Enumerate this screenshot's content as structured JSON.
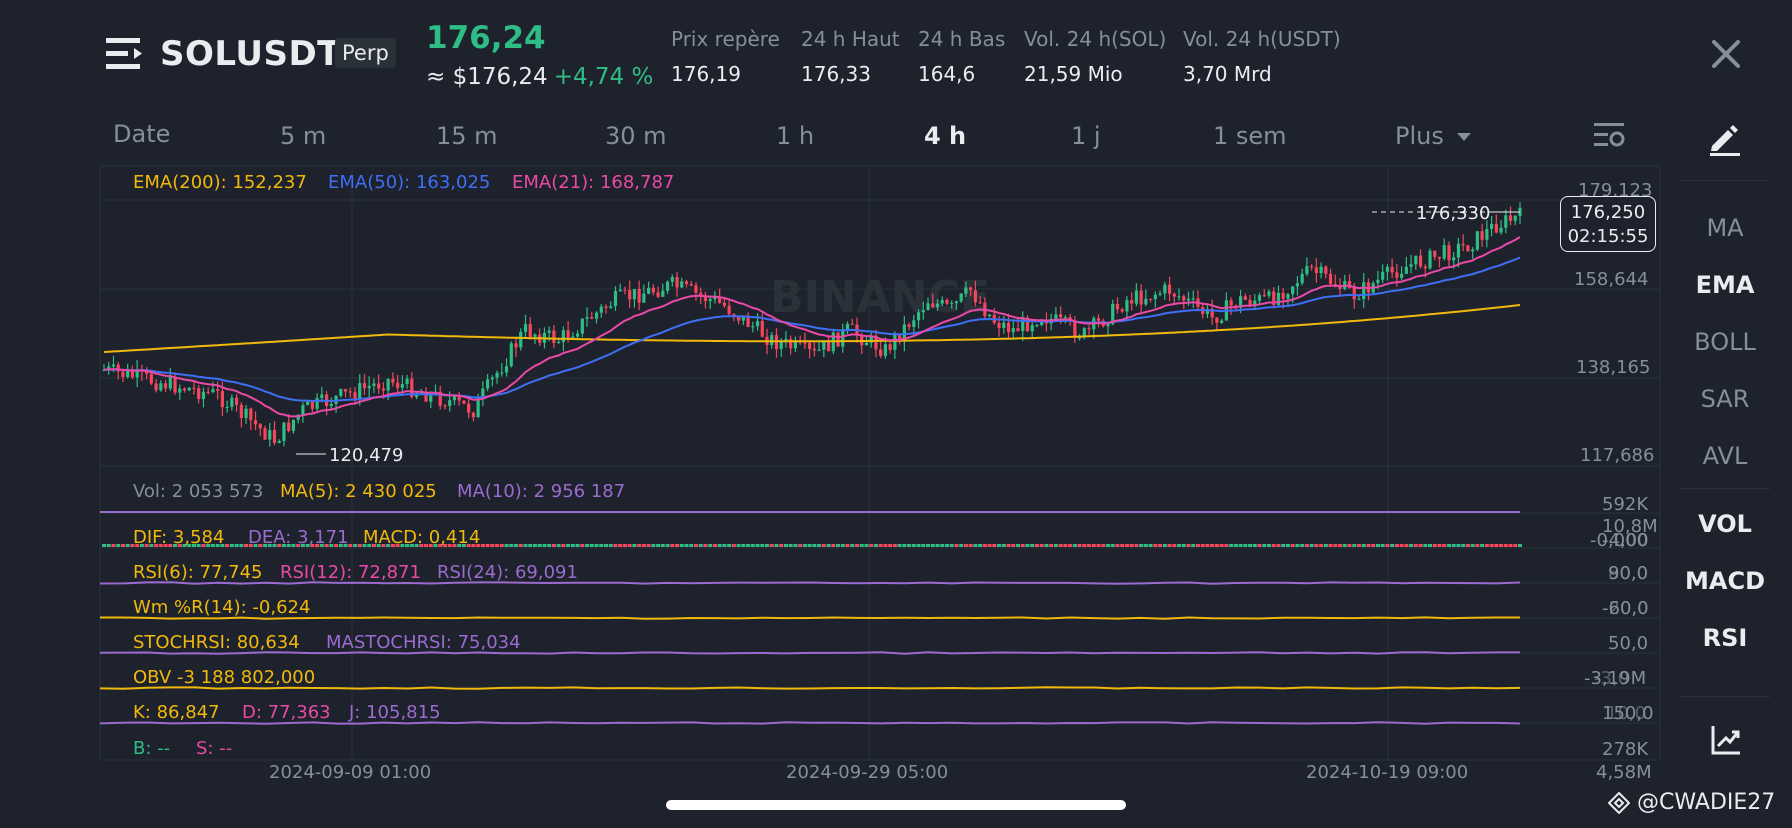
{
  "header": {
    "symbol": "SOLUSDT",
    "contract_type": "Perp",
    "last_price": "176,24",
    "usd_price": "≈ $176,24",
    "change_pct": "+4,74 %",
    "stats": [
      {
        "label": "Prix repère",
        "value": "176,19"
      },
      {
        "label": "24 h Haut",
        "value": "176,33"
      },
      {
        "label": "24 h Bas",
        "value": "164,6"
      },
      {
        "label": "Vol. 24 h(SOL)",
        "value": "21,59 Mio"
      },
      {
        "label": "Vol. 24 h(USDT)",
        "value": "3,70 Mrd"
      }
    ]
  },
  "timeframes": [
    "Date",
    "5 m",
    "15 m",
    "30 m",
    "1 h",
    "4 h",
    "1 j",
    "1 sem",
    "Plus"
  ],
  "active_timeframe": "4 h",
  "sidebar": {
    "overlays": [
      "MA",
      "EMA",
      "BOLL",
      "SAR",
      "AVL"
    ],
    "active_overlay": "EMA",
    "indicators": [
      "VOL",
      "MACD",
      "RSI"
    ]
  },
  "main_chart": {
    "ema200": "EMA(200): 152,237",
    "ema50": "EMA(50): 163,025",
    "ema21": "EMA(21): 168,787",
    "y_ticks": [
      "179,123",
      "158,644",
      "138,165",
      "117,686"
    ],
    "high_marker": "176,330",
    "low_marker": "120,479",
    "current_price": "176,250",
    "countdown": "02:15:55",
    "watermark": "BINANCE"
  },
  "volume": {
    "vol": "Vol: 2 053 573",
    "ma5": "MA(5): 2 430 025",
    "ma10": "MA(10): 2 956 187",
    "axis": "592K"
  },
  "macd": {
    "dif": "DIF: 3,584",
    "dea": "DEA: 3,171",
    "macd": "MACD: 0,414",
    "axis_top": "10,8M",
    "axis_mid": "-0,000",
    "axis_mid2": "-4,00"
  },
  "rsi": {
    "rsi6": "RSI(6): 77,745",
    "rsi12": "RSI(12): 72,871",
    "rsi24": "RSI(24): 69,091",
    "axis": "90,0",
    "axis2": "80,0"
  },
  "wr": {
    "label": "Wm %R(14): -0,624",
    "axis": "-60,0",
    "axis2": "-20,0"
  },
  "stochrsi": {
    "stoch": "STOCHRSI: 80,634",
    "ma": "MASTOCHRSI: 75,034",
    "axis": "50,0"
  },
  "obv": {
    "label": "OBV -3 188 802,000",
    "axis": "-3,19M",
    "axis2": "-3,0"
  },
  "kdj": {
    "k": "K: 86,847",
    "d": "D: 77,363",
    "j": "J: 105,815",
    "axis": "150,0",
    "axis2": "10,0"
  },
  "bs": {
    "b": "B: --",
    "s": "S: --",
    "axis": "278K",
    "axis_bottom": "4,58M"
  },
  "dates": [
    "2024-09-09 01:00",
    "2024-09-29 05:00",
    "2024-10-19 09:00"
  ],
  "footer": {
    "handle": "@CWADIE27"
  },
  "colors": {
    "background": "#1e222c",
    "up": "#2ebd85",
    "down": "#f6465d",
    "ema200": "#f0b90b",
    "ema50": "#3e6ff5",
    "ema21": "#e84aa6",
    "purple": "#9b6bd0",
    "muted": "#848e9c"
  }
}
